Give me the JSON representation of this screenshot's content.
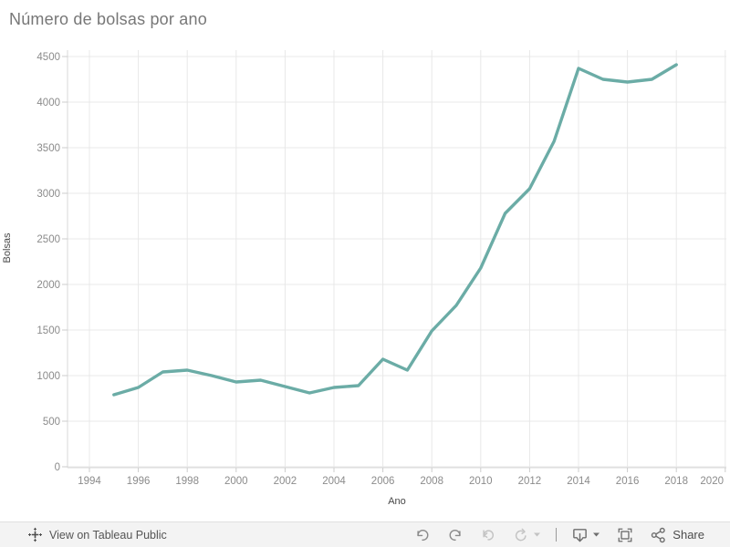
{
  "title": "Número de bolsas por ano",
  "chart_data": {
    "type": "line",
    "title": "Número de bolsas por ano",
    "xlabel": "Ano",
    "ylabel": "Bolsas",
    "x": [
      1995,
      1996,
      1997,
      1998,
      1999,
      2000,
      2001,
      2002,
      2003,
      2004,
      2005,
      2006,
      2007,
      2008,
      2009,
      2010,
      2011,
      2012,
      2013,
      2014,
      2015,
      2016,
      2017,
      2018
    ],
    "values": [
      790,
      870,
      1040,
      1060,
      1000,
      930,
      950,
      880,
      810,
      870,
      890,
      1180,
      1060,
      1490,
      1770,
      2180,
      2780,
      3050,
      3570,
      4370,
      4250,
      4220,
      4250,
      4410
    ],
    "series_name": "Bolsas",
    "series_color": "#6BACA6",
    "x_ticks": [
      1994,
      1996,
      1998,
      2000,
      2002,
      2004,
      2006,
      2008,
      2010,
      2012,
      2014,
      2016,
      2018,
      2020
    ],
    "y_ticks": [
      0,
      500,
      1000,
      1500,
      2000,
      2500,
      3000,
      3500,
      4000,
      4500
    ],
    "xlim": [
      1994,
      2020
    ],
    "ylim": [
      0,
      4500
    ],
    "grid": true,
    "legend": "none"
  },
  "toolbar": {
    "view_label": "View on Tableau Public",
    "share_label": "Share",
    "icons": [
      "tableau-logo",
      "undo",
      "redo",
      "revert",
      "refresh",
      "caret-down",
      "download",
      "fullscreen",
      "share"
    ]
  },
  "colors": {
    "line": "#6BACA6",
    "grid": "#e8e8e8",
    "axis_line": "#d9d9d9",
    "tick": "#cccccc",
    "tick_label": "#8b8b8b",
    "title_text": "#777777",
    "toolbar_bg": "#f3f3f3"
  }
}
